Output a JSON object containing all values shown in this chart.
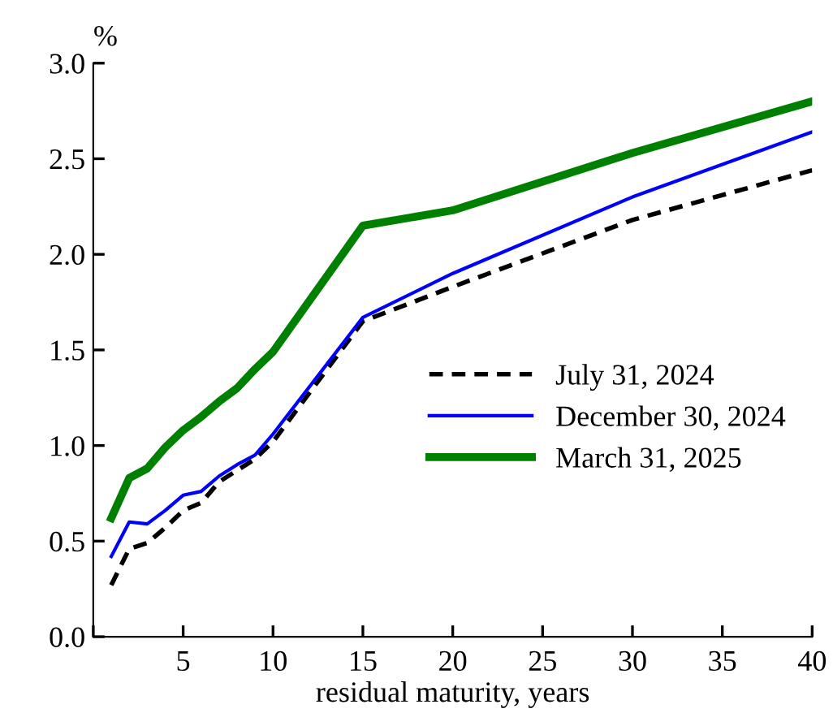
{
  "chart_data": {
    "type": "line",
    "ylabel": "%",
    "xlabel": "residual maturity, years",
    "x": [
      1,
      2,
      3,
      4,
      5,
      6,
      7,
      8,
      9,
      10,
      15,
      20,
      30,
      40
    ],
    "series": [
      {
        "name": "July 31, 2024",
        "color": "#000000",
        "line_style": "dashed",
        "values": [
          0.27,
          0.46,
          0.49,
          0.57,
          0.66,
          0.7,
          0.81,
          0.87,
          0.93,
          1.02,
          1.65,
          1.83,
          2.18,
          2.44
        ]
      },
      {
        "name": "December 30, 2024",
        "color": "#0000ff",
        "line_style": "solid",
        "values": [
          0.42,
          0.6,
          0.59,
          0.66,
          0.74,
          0.76,
          0.84,
          0.9,
          0.95,
          1.06,
          1.67,
          1.9,
          2.3,
          2.64
        ]
      },
      {
        "name": "March 31, 2025",
        "color": "#008000",
        "line_style": "solid",
        "values": [
          0.62,
          0.83,
          0.88,
          0.99,
          1.08,
          1.15,
          1.23,
          1.3,
          1.4,
          1.49,
          2.15,
          2.23,
          2.53,
          2.8
        ]
      }
    ],
    "xlim": [
      0,
      40
    ],
    "xticks": [
      {
        "value": 0,
        "label": null
      },
      5,
      10,
      15,
      20,
      25,
      30,
      35,
      40
    ],
    "ylim": [
      0,
      3.0
    ],
    "yticks": [
      {
        "value": 0,
        "label": "0.0"
      },
      {
        "value": 0.5,
        "label": "0.5"
      },
      {
        "value": 1,
        "label": "1.0"
      },
      {
        "value": 1.5,
        "label": "1.5"
      },
      {
        "value": 2,
        "label": "2.0"
      },
      {
        "value": 2.5,
        "label": "2.5"
      },
      {
        "value": 3,
        "label": "3.0"
      }
    ],
    "grid": false,
    "legend": "center right",
    "marker": "none"
  }
}
